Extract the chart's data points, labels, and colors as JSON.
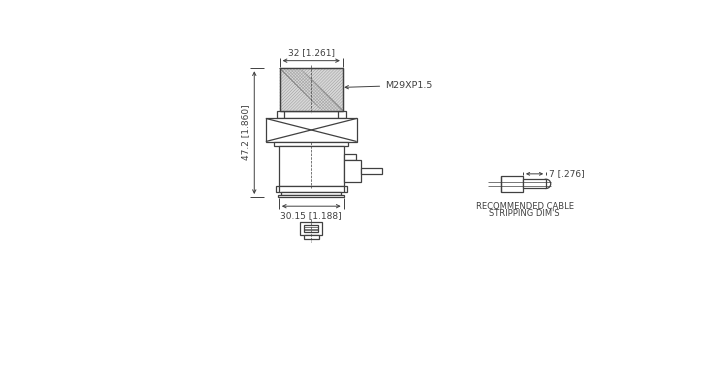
{
  "bg_color": "#ffffff",
  "line_color": "#404040",
  "dim_top_label": "32 [1.261]",
  "dim_side_label": "47.2 [1.860]",
  "dim_bottom_label": "30.15 [1.188]",
  "thread_label": "M29XP1.5",
  "cable_dim_label": "7 [.276]",
  "recommended_label_line1": "RECOMMENDED CABLE",
  "recommended_label_line2": "STRIPPING DIM'S"
}
